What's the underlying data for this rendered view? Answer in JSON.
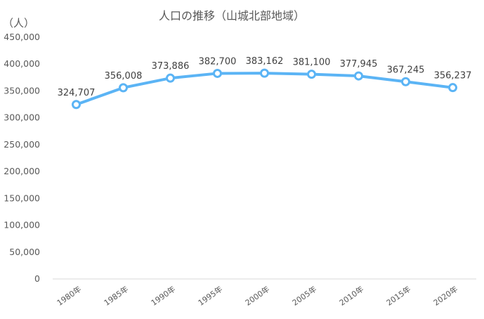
{
  "chart_data": {
    "type": "line",
    "title": "人口の推移（山城北部地域）",
    "y_unit_label": "（人）",
    "categories": [
      "1980年",
      "1985年",
      "1990年",
      "1995年",
      "2000年",
      "2005年",
      "2010年",
      "2015年",
      "2020年"
    ],
    "series": [
      {
        "values": [
          324707,
          356008,
          373886,
          382700,
          383162,
          381100,
          377945,
          367245,
          356237
        ],
        "data_labels": [
          "324,707",
          "356,008",
          "373,886",
          "382,700",
          "383,162",
          "381,100",
          "377,945",
          "367,245",
          "356,237"
        ],
        "color": "#5BB4F5"
      }
    ],
    "ylim": [
      0,
      450000
    ],
    "y_ticks": [
      "0",
      "50,000",
      "100,000",
      "150,000",
      "200,000",
      "250,000",
      "300,000",
      "350,000",
      "400,000",
      "450,000"
    ],
    "grid": false,
    "legend": "none"
  }
}
